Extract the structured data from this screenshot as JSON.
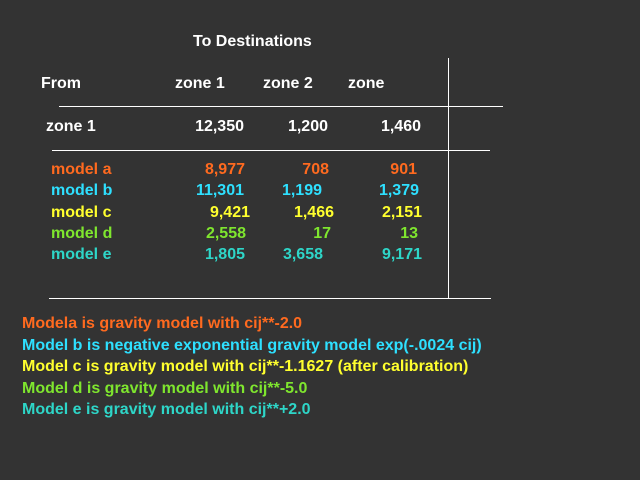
{
  "colors": {
    "background": "#333333",
    "text": "#ffffff",
    "model_a": "#ff6a1f",
    "model_b": "#2ee0ff",
    "model_c": "#ffff2e",
    "model_d": "#7fe62e",
    "model_e": "#2ed6c8"
  },
  "table": {
    "title": "To Destinations",
    "corner_label": "From",
    "columns": [
      "zone 1",
      "zone 2",
      "zone"
    ],
    "observed": {
      "label": "zone  1",
      "values": [
        "12,350",
        "1,200",
        "1,460"
      ]
    },
    "models": [
      {
        "label": "model a",
        "values": [
          "8,977",
          "708",
          "901"
        ]
      },
      {
        "label": "model b",
        "values": [
          "11,301",
          "1,199",
          "1,379"
        ]
      },
      {
        "label": "model c",
        "values": [
          "9,421",
          "1,466",
          "2,151"
        ]
      },
      {
        "label": "model d",
        "values": [
          "2,558",
          "17",
          "13"
        ]
      },
      {
        "label": "model e",
        "values": [
          "1,805",
          "3,658",
          "9,171"
        ]
      }
    ]
  },
  "notes": [
    "Modela  is gravity model with cij**-2.0",
    "Model b  is negative exponential gravity model  exp(-.0024 cij)",
    "Model c  is gravity model with cij**-1.1627 (after calibration)",
    "Model d  is gravity model with cij**-5.0",
    "Model e  is gravity model with cij**+2.0"
  ]
}
